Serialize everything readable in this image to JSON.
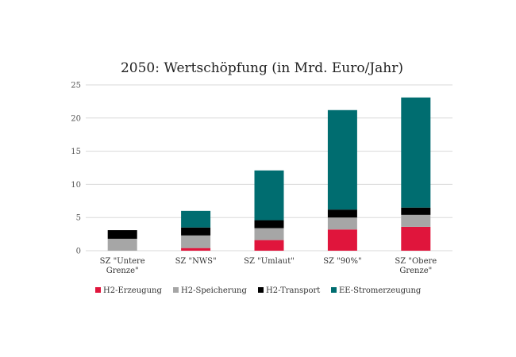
{
  "chart_data": {
    "type": "bar",
    "stacked": true,
    "title": "2050: Wertschöpfung (in Mrd. Euro/Jahr)",
    "xlabel": "",
    "ylabel": "",
    "ylim": [
      0,
      25
    ],
    "yticks": [
      0,
      5,
      10,
      15,
      20,
      25
    ],
    "grid": true,
    "legend": "bottom",
    "categories": [
      [
        "SZ \"Untere",
        "Grenze\""
      ],
      [
        "SZ \"NWS\""
      ],
      [
        "SZ \"Umlaut\""
      ],
      [
        "SZ \"90%\""
      ],
      [
        "SZ \"Obere",
        "Grenze\""
      ]
    ],
    "series": [
      {
        "name": "H2-Erzeugung",
        "color": "#e0153c",
        "values": [
          0,
          0.4,
          1.6,
          3.2,
          3.6
        ]
      },
      {
        "name": "H2-Speicherung",
        "color": "#a6a6a6",
        "values": [
          1.8,
          1.9,
          1.8,
          1.8,
          1.8
        ]
      },
      {
        "name": "H2-Transport",
        "color": "#000000",
        "values": [
          1.3,
          1.2,
          1.2,
          1.2,
          1.1
        ]
      },
      {
        "name": "EE-Stromerzeugung",
        "color": "#006d70",
        "values": [
          0,
          2.5,
          7.5,
          15.0,
          16.6
        ]
      }
    ]
  }
}
